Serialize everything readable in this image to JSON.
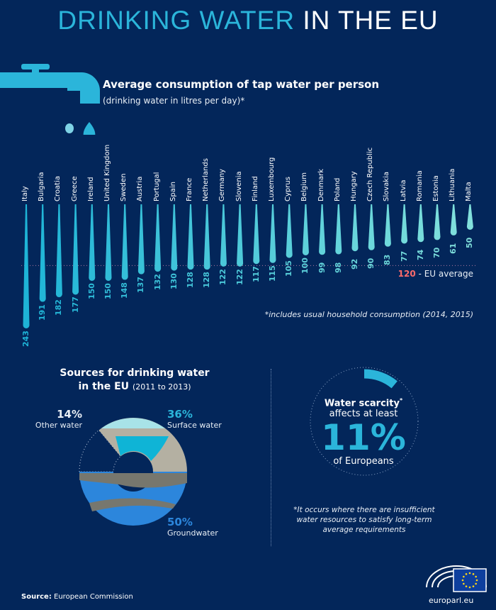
{
  "title": {
    "part1": "DRINKING WATER",
    "part2": "IN THE EU"
  },
  "colors": {
    "background": "#03265a",
    "accent": "#2bb5da",
    "eu_average": "#ff6b6b",
    "surface": "#0fb4d6",
    "ground": "#2c86dc",
    "rock": "#7a7a70"
  },
  "chart_data": [
    {
      "type": "bar",
      "title": "Average consumption of tap water per person",
      "subtitle": "(drinking water in litres per day)*",
      "categories": [
        "Italy",
        "Bulgaria",
        "Croatia",
        "Greece",
        "Ireland",
        "United Kingdom",
        "Sweden",
        "Austria",
        "Portugal",
        "Spain",
        "France",
        "Netherlands",
        "Germany",
        "Slovenia",
        "Finland",
        "Luxembourg",
        "Cyprus",
        "Belgium",
        "Denmark",
        "Poland",
        "Hungary",
        "Czech Republic",
        "Slovakia",
        "Latvia",
        "Romania",
        "Estonia",
        "Lithuania",
        "Malta"
      ],
      "values": [
        243,
        191,
        182,
        177,
        150,
        150,
        148,
        137,
        132,
        130,
        128,
        128,
        122,
        122,
        117,
        115,
        105,
        100,
        99,
        98,
        92,
        90,
        83,
        77,
        74,
        70,
        61,
        50
      ],
      "reference_line": {
        "value": 120,
        "value_label": "120",
        "label": " - EU average"
      },
      "footnote": "*includes usual household consumption (2014, 2015)"
    },
    {
      "type": "pie",
      "title": "Sources for drinking water in the EU",
      "title_line1": "Sources for drinking water",
      "title_line2": "in the EU",
      "period": "(2011 to 2013)",
      "slices": [
        {
          "label": "Other water",
          "value": 14,
          "pct": "14%"
        },
        {
          "label": "Surface water",
          "value": 36,
          "pct": "36%"
        },
        {
          "label": "Groundwater",
          "value": 50,
          "pct": "50%"
        }
      ]
    }
  ],
  "scarcity": {
    "line1": "Water scarcity",
    "star": "*",
    "line2": "affects at least",
    "value": 11,
    "big": "11%",
    "line3": "of Europeans",
    "note": "*It occurs where there are insufficient water resources to satisfy long-term average requirements"
  },
  "source": {
    "label": "Source:",
    "value": " European Commission"
  },
  "logo": {
    "url": "europarl.eu"
  }
}
